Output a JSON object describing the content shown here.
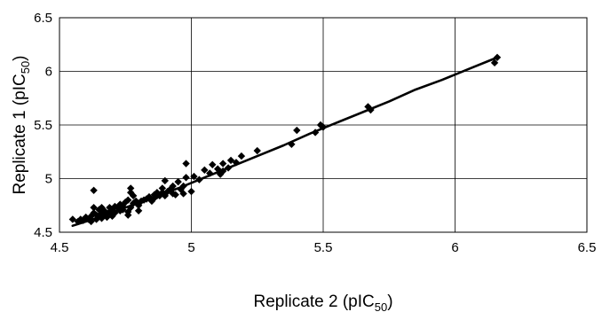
{
  "chart_data": {
    "type": "scatter",
    "title": "",
    "xlabel": {
      "prefix": "Replicate 2 (pIC",
      "sub": "50",
      "suffix": ")"
    },
    "ylabel": {
      "prefix": "Replicate 1 (pIC",
      "sub": "50",
      "suffix": ")"
    },
    "xlim": [
      4.5,
      6.5
    ],
    "ylim": [
      4.5,
      6.5
    ],
    "xticks": [
      "4.5",
      "5",
      "5.5",
      "6",
      "6.5"
    ],
    "yticks": [
      "4.5",
      "5",
      "5.5",
      "6",
      "6.5"
    ],
    "grid": true,
    "legend": "none",
    "marker": "diamond",
    "points": [
      [
        4.55,
        4.62
      ],
      [
        4.57,
        4.6
      ],
      [
        4.58,
        4.62
      ],
      [
        4.59,
        4.61
      ],
      [
        4.6,
        4.64
      ],
      [
        4.61,
        4.62
      ],
      [
        4.62,
        4.6
      ],
      [
        4.62,
        4.65
      ],
      [
        4.63,
        4.68
      ],
      [
        4.63,
        4.73
      ],
      [
        4.63,
        4.89
      ],
      [
        4.64,
        4.62
      ],
      [
        4.64,
        4.66
      ],
      [
        4.65,
        4.65
      ],
      [
        4.65,
        4.71
      ],
      [
        4.66,
        4.63
      ],
      [
        4.66,
        4.68
      ],
      [
        4.66,
        4.73
      ],
      [
        4.67,
        4.66
      ],
      [
        4.67,
        4.7
      ],
      [
        4.68,
        4.64
      ],
      [
        4.68,
        4.67
      ],
      [
        4.69,
        4.69
      ],
      [
        4.69,
        4.73
      ],
      [
        4.7,
        4.65
      ],
      [
        4.7,
        4.67
      ],
      [
        4.7,
        4.71
      ],
      [
        4.71,
        4.68
      ],
      [
        4.71,
        4.74
      ],
      [
        4.72,
        4.73
      ],
      [
        4.73,
        4.7
      ],
      [
        4.73,
        4.76
      ],
      [
        4.74,
        4.74
      ],
      [
        4.74,
        4.71
      ],
      [
        4.75,
        4.78
      ],
      [
        4.76,
        4.66
      ],
      [
        4.76,
        4.69
      ],
      [
        4.76,
        4.8
      ],
      [
        4.77,
        4.73
      ],
      [
        4.77,
        4.87
      ],
      [
        4.77,
        4.91
      ],
      [
        4.78,
        4.77
      ],
      [
        4.78,
        4.84
      ],
      [
        4.79,
        4.79
      ],
      [
        4.8,
        4.7
      ],
      [
        4.8,
        4.75
      ],
      [
        4.81,
        4.79
      ],
      [
        4.82,
        4.8
      ],
      [
        4.83,
        4.81
      ],
      [
        4.84,
        4.83
      ],
      [
        4.85,
        4.79
      ],
      [
        4.86,
        4.82
      ],
      [
        4.86,
        4.85
      ],
      [
        4.87,
        4.84
      ],
      [
        4.87,
        4.87
      ],
      [
        4.88,
        4.84
      ],
      [
        4.89,
        4.87
      ],
      [
        4.89,
        4.91
      ],
      [
        4.9,
        4.84
      ],
      [
        4.9,
        4.98
      ],
      [
        4.91,
        4.88
      ],
      [
        4.92,
        4.9
      ],
      [
        4.93,
        4.86
      ],
      [
        4.93,
        4.93
      ],
      [
        4.94,
        4.85
      ],
      [
        4.95,
        4.97
      ],
      [
        4.96,
        4.9
      ],
      [
        4.97,
        4.86
      ],
      [
        4.97,
        4.93
      ],
      [
        4.98,
        5.14
      ],
      [
        4.98,
        5.01
      ],
      [
        5.0,
        4.88
      ],
      [
        5.01,
        5.02
      ],
      [
        5.03,
        4.99
      ],
      [
        5.05,
        5.08
      ],
      [
        5.07,
        5.05
      ],
      [
        5.08,
        5.13
      ],
      [
        5.1,
        5.09
      ],
      [
        5.11,
        5.04
      ],
      [
        5.12,
        5.07
      ],
      [
        5.12,
        5.14
      ],
      [
        5.14,
        5.1
      ],
      [
        5.15,
        5.17
      ],
      [
        5.17,
        5.15
      ],
      [
        5.19,
        5.21
      ],
      [
        5.25,
        5.26
      ],
      [
        5.38,
        5.32
      ],
      [
        5.4,
        5.45
      ],
      [
        5.47,
        5.43
      ],
      [
        5.49,
        5.5
      ],
      [
        5.5,
        5.48
      ],
      [
        5.67,
        5.67
      ],
      [
        5.68,
        5.64
      ],
      [
        6.15,
        6.08
      ],
      [
        6.16,
        6.13
      ]
    ],
    "trendline": [
      [
        4.55,
        4.56
      ],
      [
        4.65,
        4.64
      ],
      [
        4.75,
        4.73
      ],
      [
        4.85,
        4.82
      ],
      [
        4.95,
        4.91
      ],
      [
        5.05,
        5.01
      ],
      [
        5.15,
        5.11
      ],
      [
        5.25,
        5.21
      ],
      [
        5.35,
        5.31
      ],
      [
        5.45,
        5.42
      ],
      [
        5.55,
        5.52
      ],
      [
        5.65,
        5.62
      ],
      [
        5.75,
        5.72
      ],
      [
        5.85,
        5.83
      ],
      [
        5.95,
        5.92
      ],
      [
        6.05,
        6.02
      ],
      [
        6.15,
        6.12
      ]
    ]
  }
}
